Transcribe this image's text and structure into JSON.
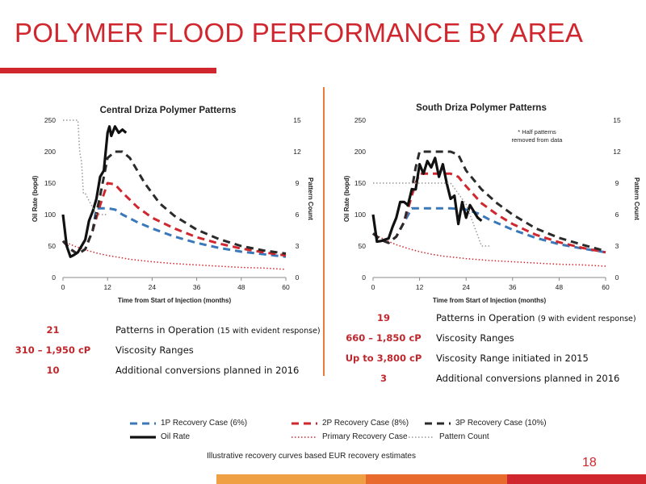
{
  "slide": {
    "title": "POLYMER FLOOD PERFORMANCE BY AREA",
    "footnote": "Illustrative recovery curves based EUR recovery  estimates",
    "page_number": "18",
    "accent_color": "#d0262d",
    "orange_color": "#ec7a3a"
  },
  "legend": {
    "items": [
      {
        "label": "1P Recovery Case (6%)",
        "style": "dash",
        "color": "#3a78b9"
      },
      {
        "label": "2P Recovery Case (8%)",
        "style": "dash",
        "color": "#d0262d"
      },
      {
        "label": "3P Recovery Case (10%)",
        "style": "dash",
        "color": "#2b2b2b"
      },
      {
        "label": "Oil Rate",
        "style": "solid",
        "color": "#111111"
      },
      {
        "label": "Primary Recovery Case",
        "style": "dot",
        "color": "#d0262d"
      },
      {
        "label": "Pattern Count",
        "style": "dot",
        "color": "#999999"
      }
    ]
  },
  "stats_central": [
    {
      "value": "21",
      "label": "Patterns in Operation ",
      "sub": "(15 with evident response)"
    },
    {
      "value": "310 –  1,950 cP",
      "label": "Viscosity Ranges",
      "sub": ""
    },
    {
      "value": "10",
      "label": "Additional conversions planned in 2016",
      "sub": ""
    }
  ],
  "stats_south": [
    {
      "value": "19",
      "label": "Patterns in Operation ",
      "sub": "(9 with evident response)"
    },
    {
      "value": "660 – 1,850 cP",
      "label": "Viscosity Ranges",
      "sub": ""
    },
    {
      "value": "Up to 3,800 cP",
      "label": "Viscosity Range initiated in 2015",
      "sub": ""
    },
    {
      "value": "3",
      "label": "Additional conversions planned in 2016",
      "sub": ""
    }
  ],
  "chart_data": [
    {
      "type": "line",
      "title": "Central Driza Polymer Patterns",
      "xlabel": "Time from Start of Injection (months)",
      "ylabel": "Oil Rate (bopd)",
      "y2label": "Pattern Count",
      "xlim": [
        0,
        60
      ],
      "ylim": [
        0,
        250
      ],
      "y2lim": [
        0,
        15
      ],
      "xticks": [
        0,
        12,
        24,
        36,
        48,
        60
      ],
      "yticks": [
        0,
        50,
        100,
        150,
        200,
        250
      ],
      "y2ticks": [
        0,
        3,
        6,
        9,
        12,
        15
      ],
      "note": "",
      "series": [
        {
          "name": "Primary Recovery Case",
          "axis": "left",
          "style": "dot",
          "color": "#d0262d",
          "x": [
            0,
            3,
            6,
            9,
            12,
            15,
            18,
            24,
            30,
            36,
            42,
            48,
            54,
            60
          ],
          "y": [
            58,
            50,
            44,
            39,
            35,
            32,
            29,
            25,
            22,
            20,
            18,
            16,
            15,
            13
          ]
        },
        {
          "name": "1P Recovery Case (6%)",
          "axis": "left",
          "style": "dash",
          "color": "#3a78b9",
          "x": [
            0,
            2,
            4,
            6,
            8,
            9,
            12,
            14,
            16,
            20,
            24,
            30,
            36,
            42,
            48,
            54,
            60
          ],
          "y": [
            58,
            45,
            37,
            45,
            75,
            110,
            110,
            108,
            100,
            88,
            78,
            65,
            55,
            47,
            41,
            37,
            33
          ]
        },
        {
          "name": "2P Recovery Case (8%)",
          "axis": "left",
          "style": "dash",
          "color": "#d0262d",
          "x": [
            0,
            2,
            4,
            6,
            8,
            10,
            12,
            14,
            16,
            20,
            24,
            30,
            36,
            42,
            48,
            54,
            60
          ],
          "y": [
            58,
            45,
            37,
            45,
            75,
            115,
            150,
            148,
            135,
            112,
            95,
            78,
            64,
            54,
            46,
            40,
            35
          ]
        },
        {
          "name": "3P Recovery Case (10%)",
          "axis": "left",
          "style": "dash",
          "color": "#2b2b2b",
          "x": [
            0,
            2,
            4,
            6,
            8,
            10,
            12,
            14,
            16,
            18,
            22,
            26,
            30,
            36,
            42,
            48,
            54,
            60
          ],
          "y": [
            58,
            45,
            37,
            45,
            75,
            130,
            190,
            200,
            200,
            190,
            150,
            118,
            98,
            76,
            61,
            50,
            43,
            38
          ]
        },
        {
          "name": "Oil Rate",
          "axis": "left",
          "style": "solid",
          "color": "#111111",
          "x": [
            0,
            1,
            2,
            3,
            4,
            5,
            6,
            7,
            8,
            9,
            10,
            11,
            12,
            12.5,
            13,
            14,
            15,
            16,
            17
          ],
          "y": [
            100,
            50,
            33,
            36,
            40,
            50,
            60,
            90,
            105,
            125,
            160,
            170,
            230,
            240,
            225,
            240,
            230,
            235,
            230
          ]
        },
        {
          "name": "Pattern Count",
          "axis": "right",
          "style": "dot",
          "color": "#999999",
          "x": [
            0,
            4,
            4.5,
            5,
            5.5,
            6,
            9,
            9.5,
            12
          ],
          "y": [
            15,
            15,
            12,
            11,
            8,
            8,
            6,
            6,
            6
          ]
        }
      ]
    },
    {
      "type": "line",
      "title": "South Driza Polymer Patterns",
      "xlabel": "Time from Start of Injection (months)",
      "ylabel": "Oil Rate (bopd)",
      "y2label": "Pattern Count",
      "xlim": [
        0,
        60
      ],
      "ylim": [
        0,
        250
      ],
      "y2lim": [
        0,
        15
      ],
      "xticks": [
        0,
        12,
        24,
        36,
        48,
        60
      ],
      "yticks": [
        0,
        50,
        100,
        150,
        200,
        250
      ],
      "y2ticks": [
        0,
        3,
        6,
        9,
        12,
        15
      ],
      "note": "* Half patterns\nremoved from data",
      "series": [
        {
          "name": "Primary Recovery Case",
          "axis": "left",
          "style": "dot",
          "color": "#d0262d",
          "x": [
            0,
            3,
            6,
            9,
            12,
            15,
            18,
            24,
            30,
            36,
            42,
            48,
            54,
            60
          ],
          "y": [
            70,
            60,
            52,
            46,
            41,
            37,
            34,
            30,
            27,
            25,
            23,
            21,
            20,
            18
          ]
        },
        {
          "name": "1P Recovery Case (6%)",
          "axis": "left",
          "style": "dash",
          "color": "#3a78b9",
          "x": [
            0,
            2,
            4,
            6,
            8,
            10,
            12,
            16,
            20,
            24,
            27,
            30,
            36,
            42,
            48,
            54,
            60
          ],
          "y": [
            70,
            60,
            55,
            65,
            88,
            110,
            110,
            110,
            110,
            108,
            102,
            92,
            76,
            63,
            53,
            46,
            40
          ]
        },
        {
          "name": "2P Recovery Case (8%)",
          "axis": "left",
          "style": "dash",
          "color": "#d0262d",
          "x": [
            0,
            2,
            4,
            6,
            8,
            10,
            11,
            12,
            16,
            20,
            22,
            24,
            28,
            32,
            36,
            42,
            48,
            54,
            60
          ],
          "y": [
            70,
            60,
            55,
            65,
            88,
            130,
            150,
            165,
            165,
            165,
            160,
            145,
            118,
            100,
            85,
            68,
            56,
            47,
            40
          ]
        },
        {
          "name": "3P Recovery Case (10%)",
          "axis": "left",
          "style": "dash",
          "color": "#2b2b2b",
          "x": [
            0,
            2,
            4,
            6,
            8,
            10,
            11,
            12,
            16,
            20,
            22,
            24,
            28,
            32,
            36,
            42,
            48,
            54,
            60
          ],
          "y": [
            70,
            60,
            55,
            65,
            88,
            140,
            175,
            200,
            200,
            200,
            195,
            170,
            140,
            118,
            100,
            78,
            63,
            52,
            42
          ]
        },
        {
          "name": "Oil Rate",
          "axis": "left",
          "style": "solid",
          "color": "#111111",
          "x": [
            0,
            1,
            2,
            3,
            4,
            5,
            6,
            7,
            8,
            9,
            10,
            11,
            12,
            13,
            14,
            15,
            16,
            17,
            18,
            19,
            20,
            21,
            22,
            23,
            24,
            25,
            26,
            27,
            28
          ],
          "y": [
            100,
            57,
            58,
            60,
            62,
            80,
            95,
            120,
            120,
            115,
            140,
            140,
            180,
            165,
            185,
            175,
            190,
            160,
            180,
            150,
            125,
            130,
            85,
            120,
            95,
            115,
            105,
            95,
            90
          ]
        },
        {
          "name": "Pattern Count",
          "axis": "right",
          "style": "dot",
          "color": "#999999",
          "x": [
            0,
            12,
            20,
            22,
            24,
            25,
            26,
            27,
            28,
            30
          ],
          "y": [
            9,
            9,
            9,
            8,
            7,
            6,
            5,
            4,
            3,
            3
          ]
        }
      ]
    }
  ]
}
